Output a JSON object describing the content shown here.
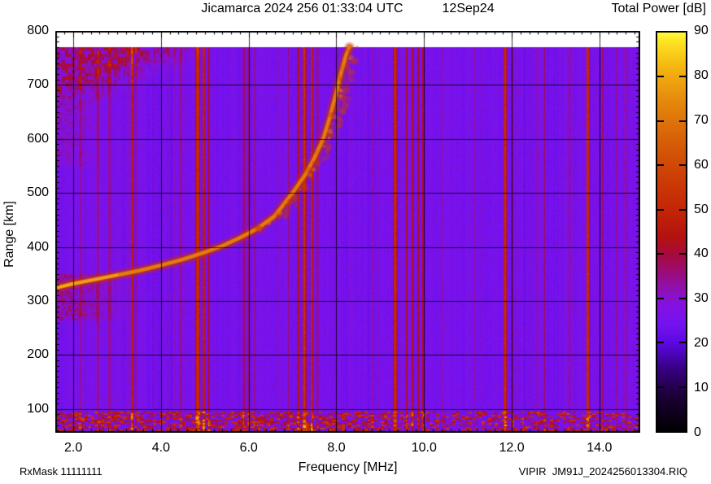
{
  "title": {
    "main": "Jicamarca 2024 256 01:33:04 UTC",
    "date": "12Sep24"
  },
  "colorbar": {
    "title": "Total Power [dB]",
    "min": 0,
    "max": 90,
    "ticks": [
      0,
      10,
      20,
      30,
      40,
      50,
      60,
      70,
      80,
      90
    ]
  },
  "axes": {
    "x": {
      "label": "Frequency [MHz]",
      "minor_step": 0.2,
      "ticks": [
        {
          "v": 2,
          "label": "2.0"
        },
        {
          "v": 4,
          "label": "4.0"
        },
        {
          "v": 6,
          "label": "6.0"
        },
        {
          "v": 8,
          "label": "8.0"
        },
        {
          "v": 10,
          "label": "10.0"
        },
        {
          "v": 12,
          "label": "12.0"
        },
        {
          "v": 14,
          "label": "14.0"
        }
      ]
    },
    "y": {
      "label": "Range [km]",
      "minor_step": 10,
      "ticks": [
        {
          "v": 100,
          "label": "100"
        },
        {
          "v": 200,
          "label": "200"
        },
        {
          "v": 300,
          "label": "300"
        },
        {
          "v": 400,
          "label": "400"
        },
        {
          "v": 500,
          "label": "500"
        },
        {
          "v": 600,
          "label": "600"
        },
        {
          "v": 700,
          "label": "700"
        },
        {
          "v": 800,
          "label": "800"
        }
      ]
    }
  },
  "footer": {
    "left": "RxMask 11111111",
    "right": "VIPIR  JM91J_2024256013304.RIQ"
  },
  "chart_data": {
    "type": "heatmap",
    "title": "Jicamarca 2024 256 01:33:04 UTC  12Sep24",
    "xlabel": "Frequency [MHz]",
    "ylabel": "Range [km]",
    "zlabel": "Total Power [dB]",
    "xlim": [
      1.59,
      14.93
    ],
    "ylim": [
      56,
      800
    ],
    "zlim": [
      0,
      90
    ],
    "grid": {
      "x_major": 2,
      "y_major": 100
    },
    "background_db": 22.3,
    "data_top_km": 770,
    "palette_stops": [
      [
        0,
        0,
        0,
        0
      ],
      [
        8,
        28,
        0,
        55
      ],
      [
        14,
        55,
        0,
        130
      ],
      [
        20,
        92,
        8,
        225
      ],
      [
        24,
        116,
        18,
        240
      ],
      [
        28,
        130,
        18,
        228
      ],
      [
        32,
        142,
        16,
        180
      ],
      [
        36,
        155,
        12,
        118
      ],
      [
        40,
        168,
        10,
        60
      ],
      [
        44,
        180,
        18,
        14
      ],
      [
        50,
        196,
        38,
        6
      ],
      [
        58,
        205,
        64,
        6
      ],
      [
        66,
        216,
        96,
        8
      ],
      [
        74,
        228,
        134,
        12
      ],
      [
        82,
        244,
        180,
        16
      ],
      [
        88,
        252,
        228,
        34
      ],
      [
        90,
        255,
        250,
        60
      ]
    ],
    "echo_trace": {
      "db_core": 72,
      "db_tip": 80,
      "points": [
        [
          1.59,
          324
        ],
        [
          2.0,
          332
        ],
        [
          2.5,
          340
        ],
        [
          3.0,
          348
        ],
        [
          3.5,
          356
        ],
        [
          4.0,
          366
        ],
        [
          4.5,
          377
        ],
        [
          5.0,
          390
        ],
        [
          5.4,
          402
        ],
        [
          5.8,
          417
        ],
        [
          6.2,
          434
        ],
        [
          6.6,
          458
        ],
        [
          7.0,
          500
        ],
        [
          7.3,
          535
        ],
        [
          7.5,
          565
        ],
        [
          7.7,
          600
        ],
        [
          7.85,
          640
        ],
        [
          7.98,
          680
        ],
        [
          8.1,
          720
        ],
        [
          8.22,
          755
        ],
        [
          8.3,
          770
        ]
      ]
    },
    "critical_frequency_mhz": 8.35,
    "spread_f": {
      "f_offset": [
        0.03,
        0.3
      ],
      "km": [
        430,
        770
      ]
    },
    "rfi_stripes": [
      {
        "f": 2.15,
        "w": 0.05,
        "db": 8
      },
      {
        "f": 2.55,
        "w": 0.09,
        "db": 7
      },
      {
        "f": 2.82,
        "w": 0.1,
        "db": 8
      },
      {
        "f": 3.33,
        "w": 0.06,
        "db": 24
      },
      {
        "f": 3.42,
        "w": 0.04,
        "db": 12
      },
      {
        "f": 4.45,
        "w": 0.05,
        "db": 8
      },
      {
        "f": 4.83,
        "w": 0.1,
        "db": 28
      },
      {
        "f": 4.97,
        "w": 0.06,
        "db": 22
      },
      {
        "f": 5.08,
        "w": 0.05,
        "db": 16
      },
      {
        "f": 5.88,
        "w": 0.05,
        "db": 14
      },
      {
        "f": 5.99,
        "w": 0.04,
        "db": 12
      },
      {
        "f": 6.12,
        "w": 0.04,
        "db": 10
      },
      {
        "f": 6.9,
        "w": 0.04,
        "db": 10
      },
      {
        "f": 7.12,
        "w": 0.05,
        "db": 22
      },
      {
        "f": 7.26,
        "w": 0.09,
        "db": 28
      },
      {
        "f": 7.43,
        "w": 0.06,
        "db": 26
      },
      {
        "f": 7.56,
        "w": 0.04,
        "db": 13
      },
      {
        "f": 8.82,
        "w": 0.04,
        "db": 9
      },
      {
        "f": 9.33,
        "w": 0.09,
        "db": 28
      },
      {
        "f": 9.6,
        "w": 0.04,
        "db": 15
      },
      {
        "f": 9.73,
        "w": 0.05,
        "db": 18
      },
      {
        "f": 9.86,
        "w": 0.05,
        "db": 19
      },
      {
        "f": 9.97,
        "w": 0.03,
        "db": 13
      },
      {
        "f": 10.4,
        "w": 0.04,
        "db": 8
      },
      {
        "f": 11.15,
        "w": 0.04,
        "db": 8
      },
      {
        "f": 11.84,
        "w": 0.08,
        "db": 28
      },
      {
        "f": 12.02,
        "w": 0.04,
        "db": 10
      },
      {
        "f": 12.75,
        "w": 0.05,
        "db": 10
      },
      {
        "f": 13.3,
        "w": 0.04,
        "db": 8
      },
      {
        "f": 13.73,
        "w": 0.08,
        "db": 26
      },
      {
        "f": 14.06,
        "w": 0.05,
        "db": 12
      },
      {
        "f": 14.38,
        "w": 0.05,
        "db": 9
      },
      {
        "f": 14.62,
        "w": 0.04,
        "db": 8
      }
    ],
    "bottom_noise_band": {
      "km": [
        56,
        96
      ],
      "db_max": 50,
      "denser_below_mhz": 9.2
    },
    "topleft_diffuse": {
      "edge_from": [
        1.59,
        648
      ],
      "edge_to": [
        4.85,
        770
      ],
      "db_range": [
        28,
        46
      ]
    },
    "left_diffuse": {
      "f": [
        1.59,
        3.4
      ],
      "km": [
        265,
        350
      ],
      "db_max": 38
    }
  }
}
